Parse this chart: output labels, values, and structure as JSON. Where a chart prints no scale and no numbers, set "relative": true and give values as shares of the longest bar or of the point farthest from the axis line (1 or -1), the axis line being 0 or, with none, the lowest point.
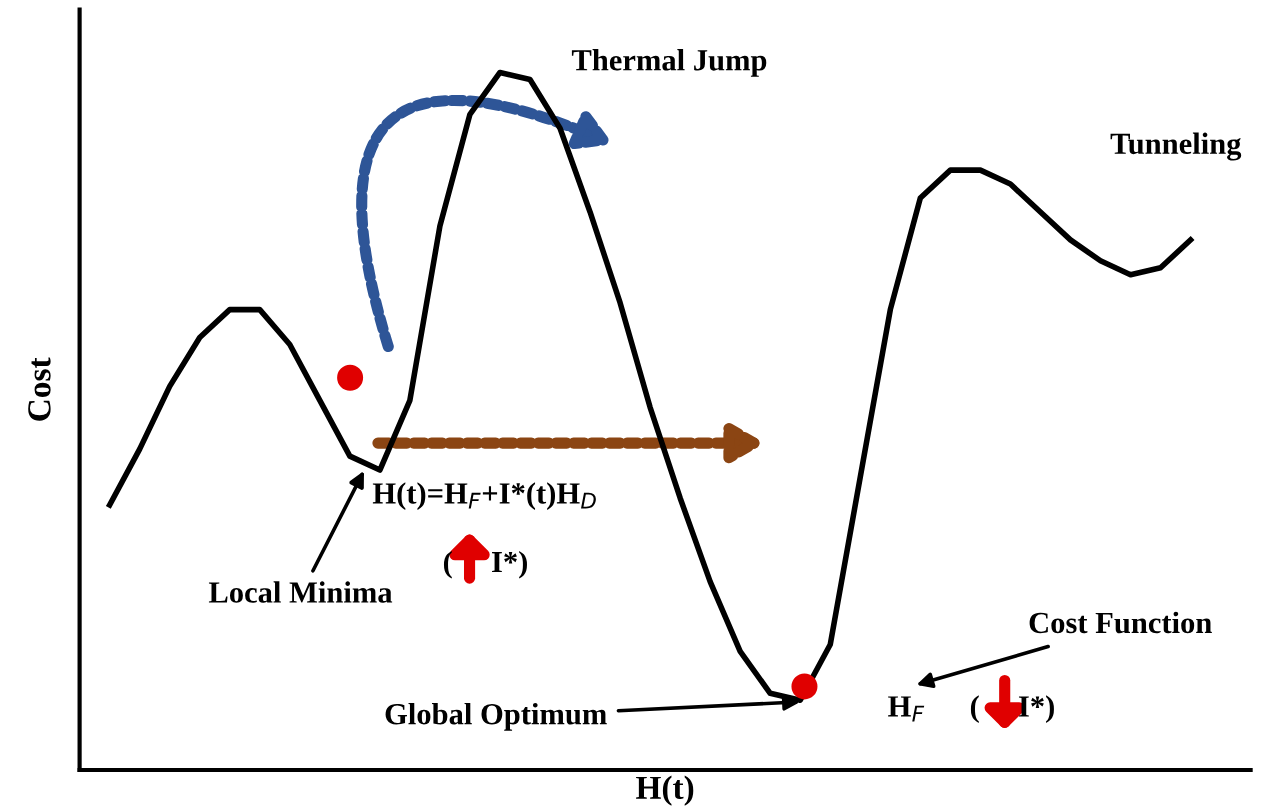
{
  "chart_data": {
    "type": "line",
    "relative": true,
    "xlabel": "H(t)",
    "ylabel": "Cost",
    "categories": [
      null,
      null,
      null,
      null,
      null,
      null,
      null,
      null,
      null,
      null,
      null,
      null,
      null,
      null,
      null,
      null,
      null,
      null,
      null,
      null,
      null,
      null,
      null,
      null,
      null,
      null,
      null,
      null,
      null,
      null,
      null,
      null,
      null,
      null,
      null,
      null,
      null
    ],
    "series": [
      {
        "color": "#000000",
        "values": [
          0.38,
          0.46,
          0.55,
          0.62,
          0.66,
          0.66,
          0.61,
          0.53,
          0.45,
          0.43,
          0.53,
          0.78,
          0.94,
          1.0,
          0.99,
          0.92,
          0.8,
          0.67,
          0.52,
          0.39,
          0.27,
          0.17,
          0.11,
          0.1,
          0.18,
          0.42,
          0.66,
          0.82,
          0.86,
          0.86,
          0.84,
          0.8,
          0.76,
          0.73,
          0.71,
          0.72,
          0.76
        ]
      }
    ],
    "marker": "none",
    "grid": false,
    "legend": false,
    "annotations": [
      "Thermal Jump",
      "Tunneling",
      "Local Minima",
      "H(t)=H$_{F}$+I*(t)H$_{D}$",
      "(     I*)",
      "Cost Function",
      "Global Optimum",
      "H$_{F}$",
      "(     I*)"
    ]
  }
}
